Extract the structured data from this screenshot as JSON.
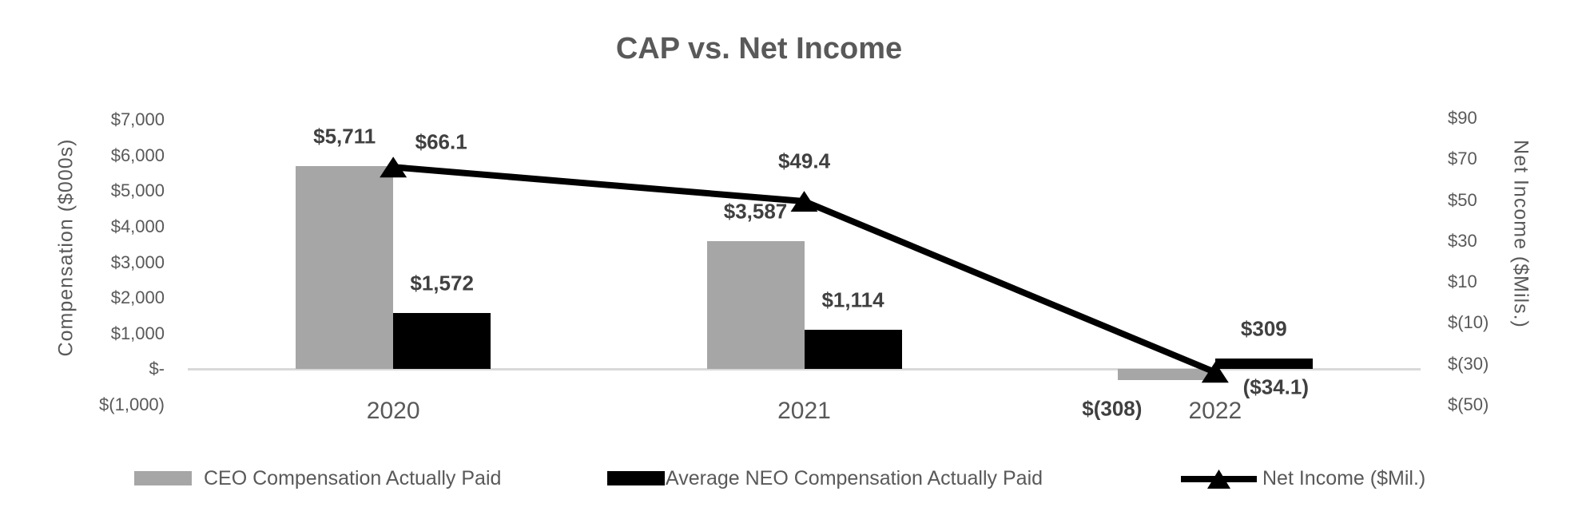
{
  "chart_data": {
    "type": "bar",
    "subtype": "combo-bar-line-dual-axis",
    "title": "CAP vs. Net Income",
    "categories": [
      "2020",
      "2021",
      "2022"
    ],
    "series": [
      {
        "name": "CEO Compensation Actually Paid",
        "type": "bar",
        "axis": "left",
        "color": "#A6A6A6",
        "values": [
          5711,
          3587,
          -308
        ],
        "labels": [
          "$5,711",
          "$3,587",
          "$(308)"
        ]
      },
      {
        "name": "Average NEO Compensation Actually Paid",
        "type": "bar",
        "axis": "left",
        "color": "#000000",
        "values": [
          1572,
          1114,
          309
        ],
        "labels": [
          "$1,572",
          "$1,114",
          "$309"
        ]
      },
      {
        "name": "Net Income ($Mil.)",
        "type": "line",
        "axis": "right",
        "color": "#000000",
        "marker": "triangle-up",
        "values": [
          66.1,
          49.4,
          -34.1
        ],
        "labels": [
          "$66.1",
          "$49.4",
          "($34.1)"
        ]
      }
    ],
    "left_axis": {
      "label": "Compensation ($000s)",
      "ticks": [
        "$7,000",
        "$6,000",
        "$5,000",
        "$4,000",
        "$3,000",
        "$2,000",
        "$1,000",
        "$-",
        "$(1,000)"
      ],
      "tick_values": [
        7000,
        6000,
        5000,
        4000,
        3000,
        2000,
        1000,
        0,
        -1000
      ],
      "range": [
        -1000,
        7000
      ]
    },
    "right_axis": {
      "label": "Net Income ($Mils.)",
      "ticks": [
        "$90",
        "$70",
        "$50",
        "$30",
        "$10",
        "$(10)",
        "$(30)",
        "$(50)"
      ],
      "tick_values": [
        90,
        70,
        50,
        30,
        10,
        -10,
        -30,
        -50
      ],
      "range": [
        -50,
        90
      ]
    },
    "legend": {
      "position": "bottom",
      "entries": [
        "CEO Compensation Actually Paid",
        "Average NEO Compensation Actually Paid",
        "Net Income ($Mil.)"
      ]
    },
    "grid": false,
    "colors": {
      "background": "#FFFFFF",
      "text": "#595959",
      "data_label": "#404040",
      "axis_line": "#D9D9D9",
      "bar_gray": "#A6A6A6",
      "bar_black": "#000000",
      "line": "#000000"
    }
  }
}
